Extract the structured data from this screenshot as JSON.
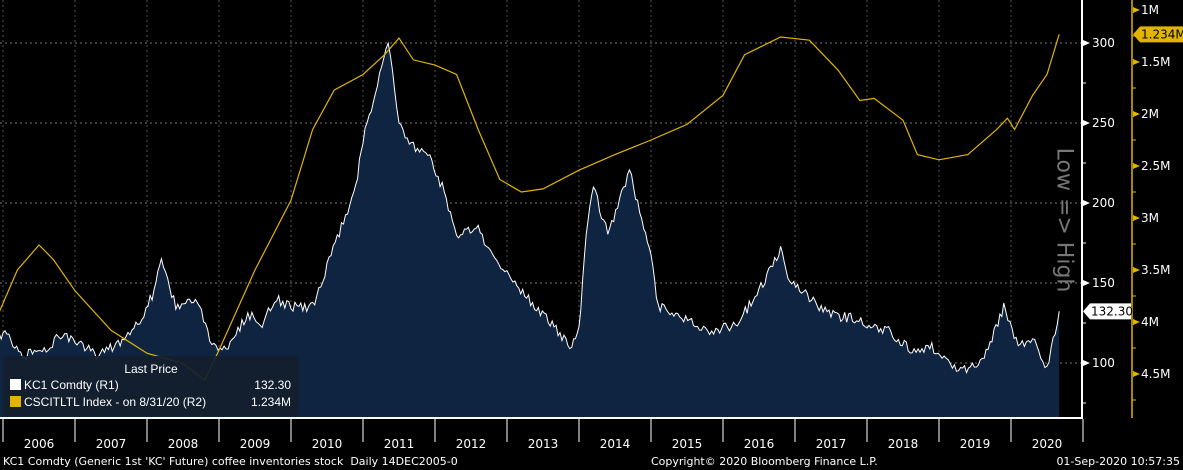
{
  "chart_data": {
    "type": "line",
    "title": "",
    "x_axis": {
      "ticks": [
        "2006",
        "2007",
        "2008",
        "2009",
        "2010",
        "2011",
        "2012",
        "2013",
        "2014",
        "2015",
        "2016",
        "2017",
        "2018",
        "2019",
        "2020"
      ],
      "range": [
        2005.95,
        2020.67
      ]
    },
    "y_axis_right1": {
      "ticks": [
        100,
        150,
        200,
        250,
        300
      ],
      "range": [
        66,
        300
      ],
      "label": ""
    },
    "y_axis_right2": {
      "ticks": [
        "1M",
        "1.5M",
        "2M",
        "2.5M",
        "3M",
        "3.5M",
        "4M",
        "4.5M"
      ],
      "tick_values": [
        1,
        1.5,
        2,
        2.5,
        3,
        3.5,
        4,
        4.5
      ],
      "range_millions": [
        0.8,
        5.0
      ],
      "inverted": true,
      "label": "Low => High"
    },
    "grid": true,
    "series": [
      {
        "name": "KC1 Comdty  (R1)",
        "axis": "R1",
        "color": "#ffffff",
        "fill": "#0e2440",
        "last_value": "132.30",
        "x": [
          2005.95,
          2006.0,
          2006.3,
          2006.6,
          2006.8,
          2007.0,
          2007.3,
          2007.6,
          2007.9,
          2008.1,
          2008.2,
          2008.4,
          2008.7,
          2008.9,
          2009.1,
          2009.4,
          2009.6,
          2009.8,
          2010.0,
          2010.3,
          2010.5,
          2010.7,
          2010.9,
          2011.0,
          2011.2,
          2011.35,
          2011.5,
          2011.7,
          2011.9,
          2012.1,
          2012.3,
          2012.6,
          2012.8,
          2013.0,
          2013.3,
          2013.6,
          2013.9,
          2014.0,
          2014.1,
          2014.2,
          2014.4,
          2014.7,
          2014.9,
          2015.0,
          2015.1,
          2015.4,
          2015.7,
          2015.9,
          2016.2,
          2016.5,
          2016.8,
          2016.9,
          2017.2,
          2017.5,
          2017.8,
          2018.0,
          2018.3,
          2018.6,
          2018.9,
          2019.1,
          2019.3,
          2019.6,
          2019.9,
          2020.1,
          2020.3,
          2020.5,
          2020.67
        ],
        "y": [
          115,
          120,
          105,
          108,
          118,
          115,
          105,
          112,
          125,
          145,
          165,
          135,
          140,
          112,
          110,
          130,
          125,
          140,
          135,
          135,
          160,
          185,
          210,
          240,
          275,
          300,
          250,
          235,
          230,
          210,
          180,
          185,
          165,
          155,
          140,
          125,
          110,
          120,
          180,
          210,
          180,
          220,
          185,
          170,
          135,
          130,
          122,
          120,
          125,
          145,
          170,
          155,
          140,
          130,
          128,
          125,
          120,
          108,
          110,
          102,
          95,
          100,
          135,
          110,
          115,
          97,
          132.3
        ]
      },
      {
        "name": "CSCITLTL Index -  on 8/31/20  (R2)",
        "axis": "R2",
        "color": "#e0b400",
        "last_value": "1.234M",
        "x": [
          2005.95,
          2006.2,
          2006.5,
          2006.7,
          2007.0,
          2007.5,
          2008.0,
          2008.5,
          2008.8,
          2009.0,
          2009.5,
          2010.0,
          2010.3,
          2010.6,
          2011.0,
          2011.3,
          2011.5,
          2011.7,
          2012.0,
          2012.3,
          2012.6,
          2012.9,
          2013.2,
          2013.5,
          2014.0,
          2014.5,
          2015.0,
          2015.5,
          2016.0,
          2016.3,
          2016.8,
          2017.2,
          2017.6,
          2017.9,
          2018.1,
          2018.5,
          2018.7,
          2019.0,
          2019.4,
          2019.8,
          2019.95,
          2020.05,
          2020.3,
          2020.5,
          2020.67
        ],
        "y": [
          3.9,
          3.5,
          3.26,
          3.4,
          3.7,
          4.08,
          4.3,
          4.4,
          4.56,
          4.27,
          3.5,
          2.83,
          2.15,
          1.77,
          1.62,
          1.43,
          1.27,
          1.48,
          1.53,
          1.62,
          2.15,
          2.63,
          2.75,
          2.72,
          2.54,
          2.39,
          2.25,
          2.1,
          1.82,
          1.43,
          1.26,
          1.29,
          1.58,
          1.87,
          1.85,
          2.06,
          2.39,
          2.44,
          2.39,
          2.15,
          2.04,
          2.15,
          1.82,
          1.62,
          1.234
        ]
      }
    ],
    "legend": {
      "placement": "bottom-left",
      "header": "Last Price",
      "items": [
        {
          "label": "KC1 Comdty  (R1)",
          "value": "132.30"
        },
        {
          "label": "CSCITLTL Index -  on 8/31/20  (R2)",
          "value": "1.234M"
        }
      ]
    }
  },
  "footer": {
    "description": "KC1 Comdty (Generic 1st 'KC' Future) coffee inventories stock  Daily 14DEC2005-0",
    "copyright": "Copyright© 2020 Bloomberg Finance L.P.",
    "timestamp": "01-Sep-2020 10:57:35"
  }
}
